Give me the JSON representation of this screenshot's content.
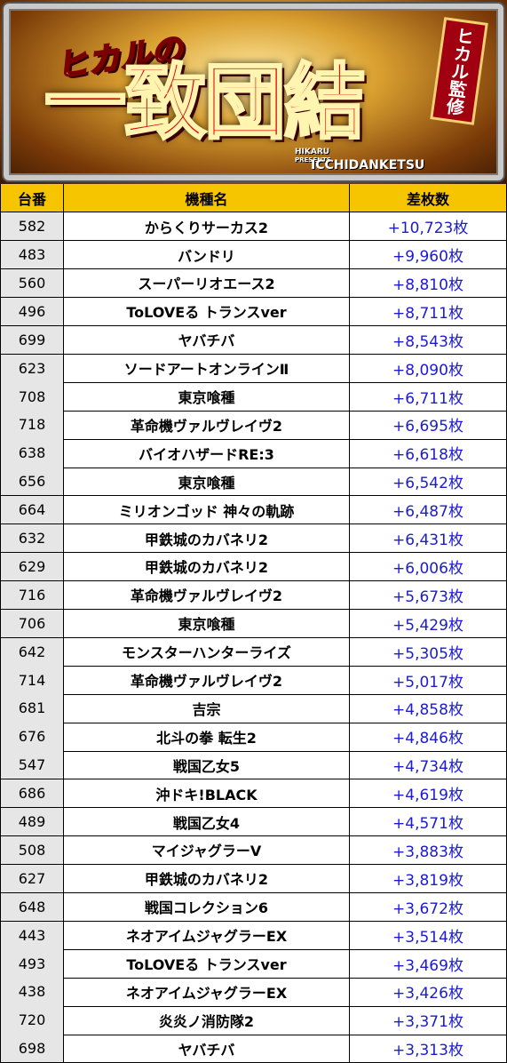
{
  "banner": {
    "title_small": "ヒカルの",
    "title_main": "一致団結",
    "badge": "ヒカル監修",
    "subtitle_1": "HIKARU",
    "subtitle_2": "PRESENTS",
    "subtitle_3": "ICCHIDANKETSU"
  },
  "table": {
    "headers": [
      "台番",
      "機種名",
      "差枚数"
    ],
    "rows": [
      [
        "582",
        "からくりサーカス2",
        "+10,723枚"
      ],
      [
        "483",
        "バンドリ",
        "+9,960枚"
      ],
      [
        "560",
        "スーパーリオエース2",
        "+8,810枚"
      ],
      [
        "496",
        "ToLOVEる トランスver",
        "+8,711枚"
      ],
      [
        "699",
        "ヤバチバ",
        "+8,543枚"
      ],
      [
        "623",
        "ソードアートオンラインⅡ",
        "+8,090枚"
      ],
      [
        "708",
        "東京喰種",
        "+6,711枚"
      ],
      [
        "718",
        "革命機ヴァルヴレイヴ2",
        "+6,695枚"
      ],
      [
        "638",
        "バイオハザードRE:3",
        "+6,618枚"
      ],
      [
        "656",
        "東京喰種",
        "+6,542枚"
      ],
      [
        "664",
        "ミリオンゴッド 神々の軌跡",
        "+6,487枚"
      ],
      [
        "632",
        "甲鉄城のカバネリ2",
        "+6,431枚"
      ],
      [
        "629",
        "甲鉄城のカバネリ2",
        "+6,006枚"
      ],
      [
        "716",
        "革命機ヴァルヴレイヴ2",
        "+5,673枚"
      ],
      [
        "706",
        "東京喰種",
        "+5,429枚"
      ],
      [
        "642",
        "モンスターハンターライズ",
        "+5,305枚"
      ],
      [
        "714",
        "革命機ヴァルヴレイヴ2",
        "+5,017枚"
      ],
      [
        "681",
        "吉宗",
        "+4,858枚"
      ],
      [
        "676",
        "北斗の拳 転生2",
        "+4,846枚"
      ],
      [
        "547",
        "戦国乙女5",
        "+4,734枚"
      ],
      [
        "686",
        "沖ドキ!BLACK",
        "+4,619枚"
      ],
      [
        "489",
        "戦国乙女4",
        "+4,571枚"
      ],
      [
        "508",
        "マイジャグラーV",
        "+3,883枚"
      ],
      [
        "627",
        "甲鉄城のカバネリ2",
        "+3,819枚"
      ],
      [
        "648",
        "戦国コレクション6",
        "+3,672枚"
      ],
      [
        "443",
        "ネオアイムジャグラーEX",
        "+3,514枚"
      ],
      [
        "493",
        "ToLOVEる トランスver",
        "+3,469枚"
      ],
      [
        "438",
        "ネオアイムジャグラーEX",
        "+3,426枚"
      ],
      [
        "720",
        "炎炎ノ消防隊2",
        "+3,371枚"
      ],
      [
        "698",
        "ヤバチバ",
        "+3,313枚"
      ]
    ]
  }
}
